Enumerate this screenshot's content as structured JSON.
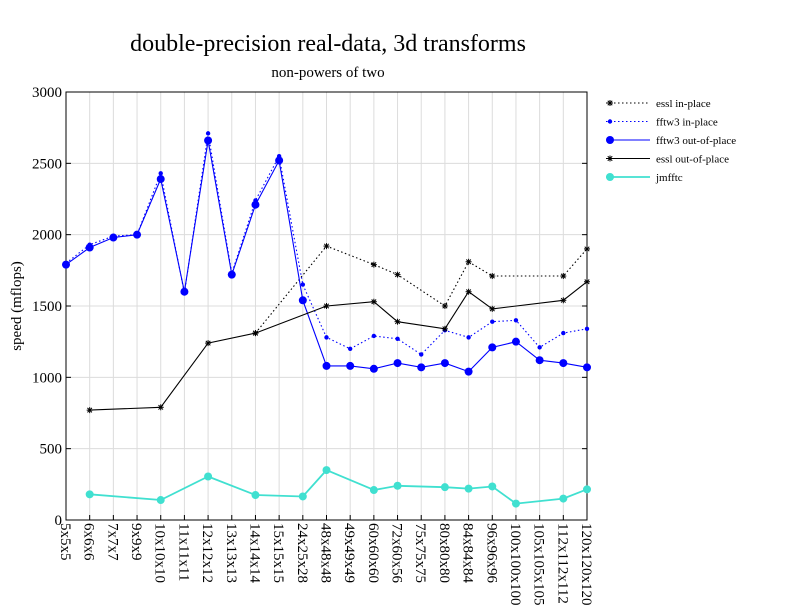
{
  "chart_data": {
    "type": "line",
    "title": "double-precision real-data, 3d transforms",
    "subtitle": "non-powers of two",
    "xlabel": "",
    "ylabel": "speed (mflops)",
    "ylim": [
      0,
      3000
    ],
    "yticks": [
      0,
      500,
      1000,
      1500,
      2000,
      2500,
      3000
    ],
    "grid": true,
    "legend_position": "right",
    "categories": [
      "5x5x5",
      "6x6x6",
      "7x7x7",
      "9x9x9",
      "10x10x10",
      "11x11x11",
      "12x12x12",
      "13x13x13",
      "14x14x14",
      "15x15x15",
      "24x25x28",
      "48x48x48",
      "49x49x49",
      "60x60x60",
      "72x60x56",
      "75x75x75",
      "80x80x80",
      "84x84x84",
      "96x96x96",
      "100x100x100",
      "105x105x105",
      "112x112x112",
      "120x120x120"
    ],
    "series": [
      {
        "name": "essl in-place",
        "color": "#000000",
        "line": "dotted",
        "marker": "star",
        "values": [
          null,
          null,
          null,
          null,
          null,
          null,
          null,
          null,
          1310,
          null,
          null,
          1920,
          null,
          1790,
          1720,
          null,
          1500,
          1810,
          1710,
          null,
          null,
          1710,
          1900
        ]
      },
      {
        "name": "fftw3 in-place",
        "color": "#0000ff",
        "line": "dotted",
        "marker": "dot",
        "values": [
          1800,
          1930,
          1990,
          2000,
          2430,
          1590,
          2710,
          1730,
          2240,
          2550,
          1650,
          1280,
          1200,
          1290,
          1270,
          1160,
          1330,
          1280,
          1390,
          1400,
          1210,
          1310,
          1340
        ]
      },
      {
        "name": "fftw3 out-of-place",
        "color": "#0000ff",
        "line": "solid",
        "marker": "circle",
        "values": [
          1790,
          1910,
          1980,
          2000,
          2390,
          1600,
          2660,
          1720,
          2210,
          2520,
          1540,
          1080,
          1080,
          1060,
          1100,
          1070,
          1100,
          1040,
          1210,
          1250,
          1120,
          1100,
          1070
        ]
      },
      {
        "name": "essl out-of-place",
        "color": "#000000",
        "line": "solid",
        "marker": "star",
        "values": [
          null,
          770,
          null,
          null,
          790,
          null,
          1240,
          null,
          1310,
          null,
          null,
          1500,
          null,
          1530,
          1390,
          null,
          1340,
          1600,
          1480,
          null,
          null,
          1540,
          1670
        ]
      },
      {
        "name": "jmfftc",
        "color": "#40e0d0",
        "line": "solid",
        "marker": "circle",
        "values": [
          null,
          180,
          null,
          null,
          140,
          null,
          305,
          null,
          175,
          null,
          165,
          350,
          null,
          210,
          240,
          null,
          230,
          220,
          235,
          115,
          null,
          150,
          215
        ]
      }
    ]
  }
}
